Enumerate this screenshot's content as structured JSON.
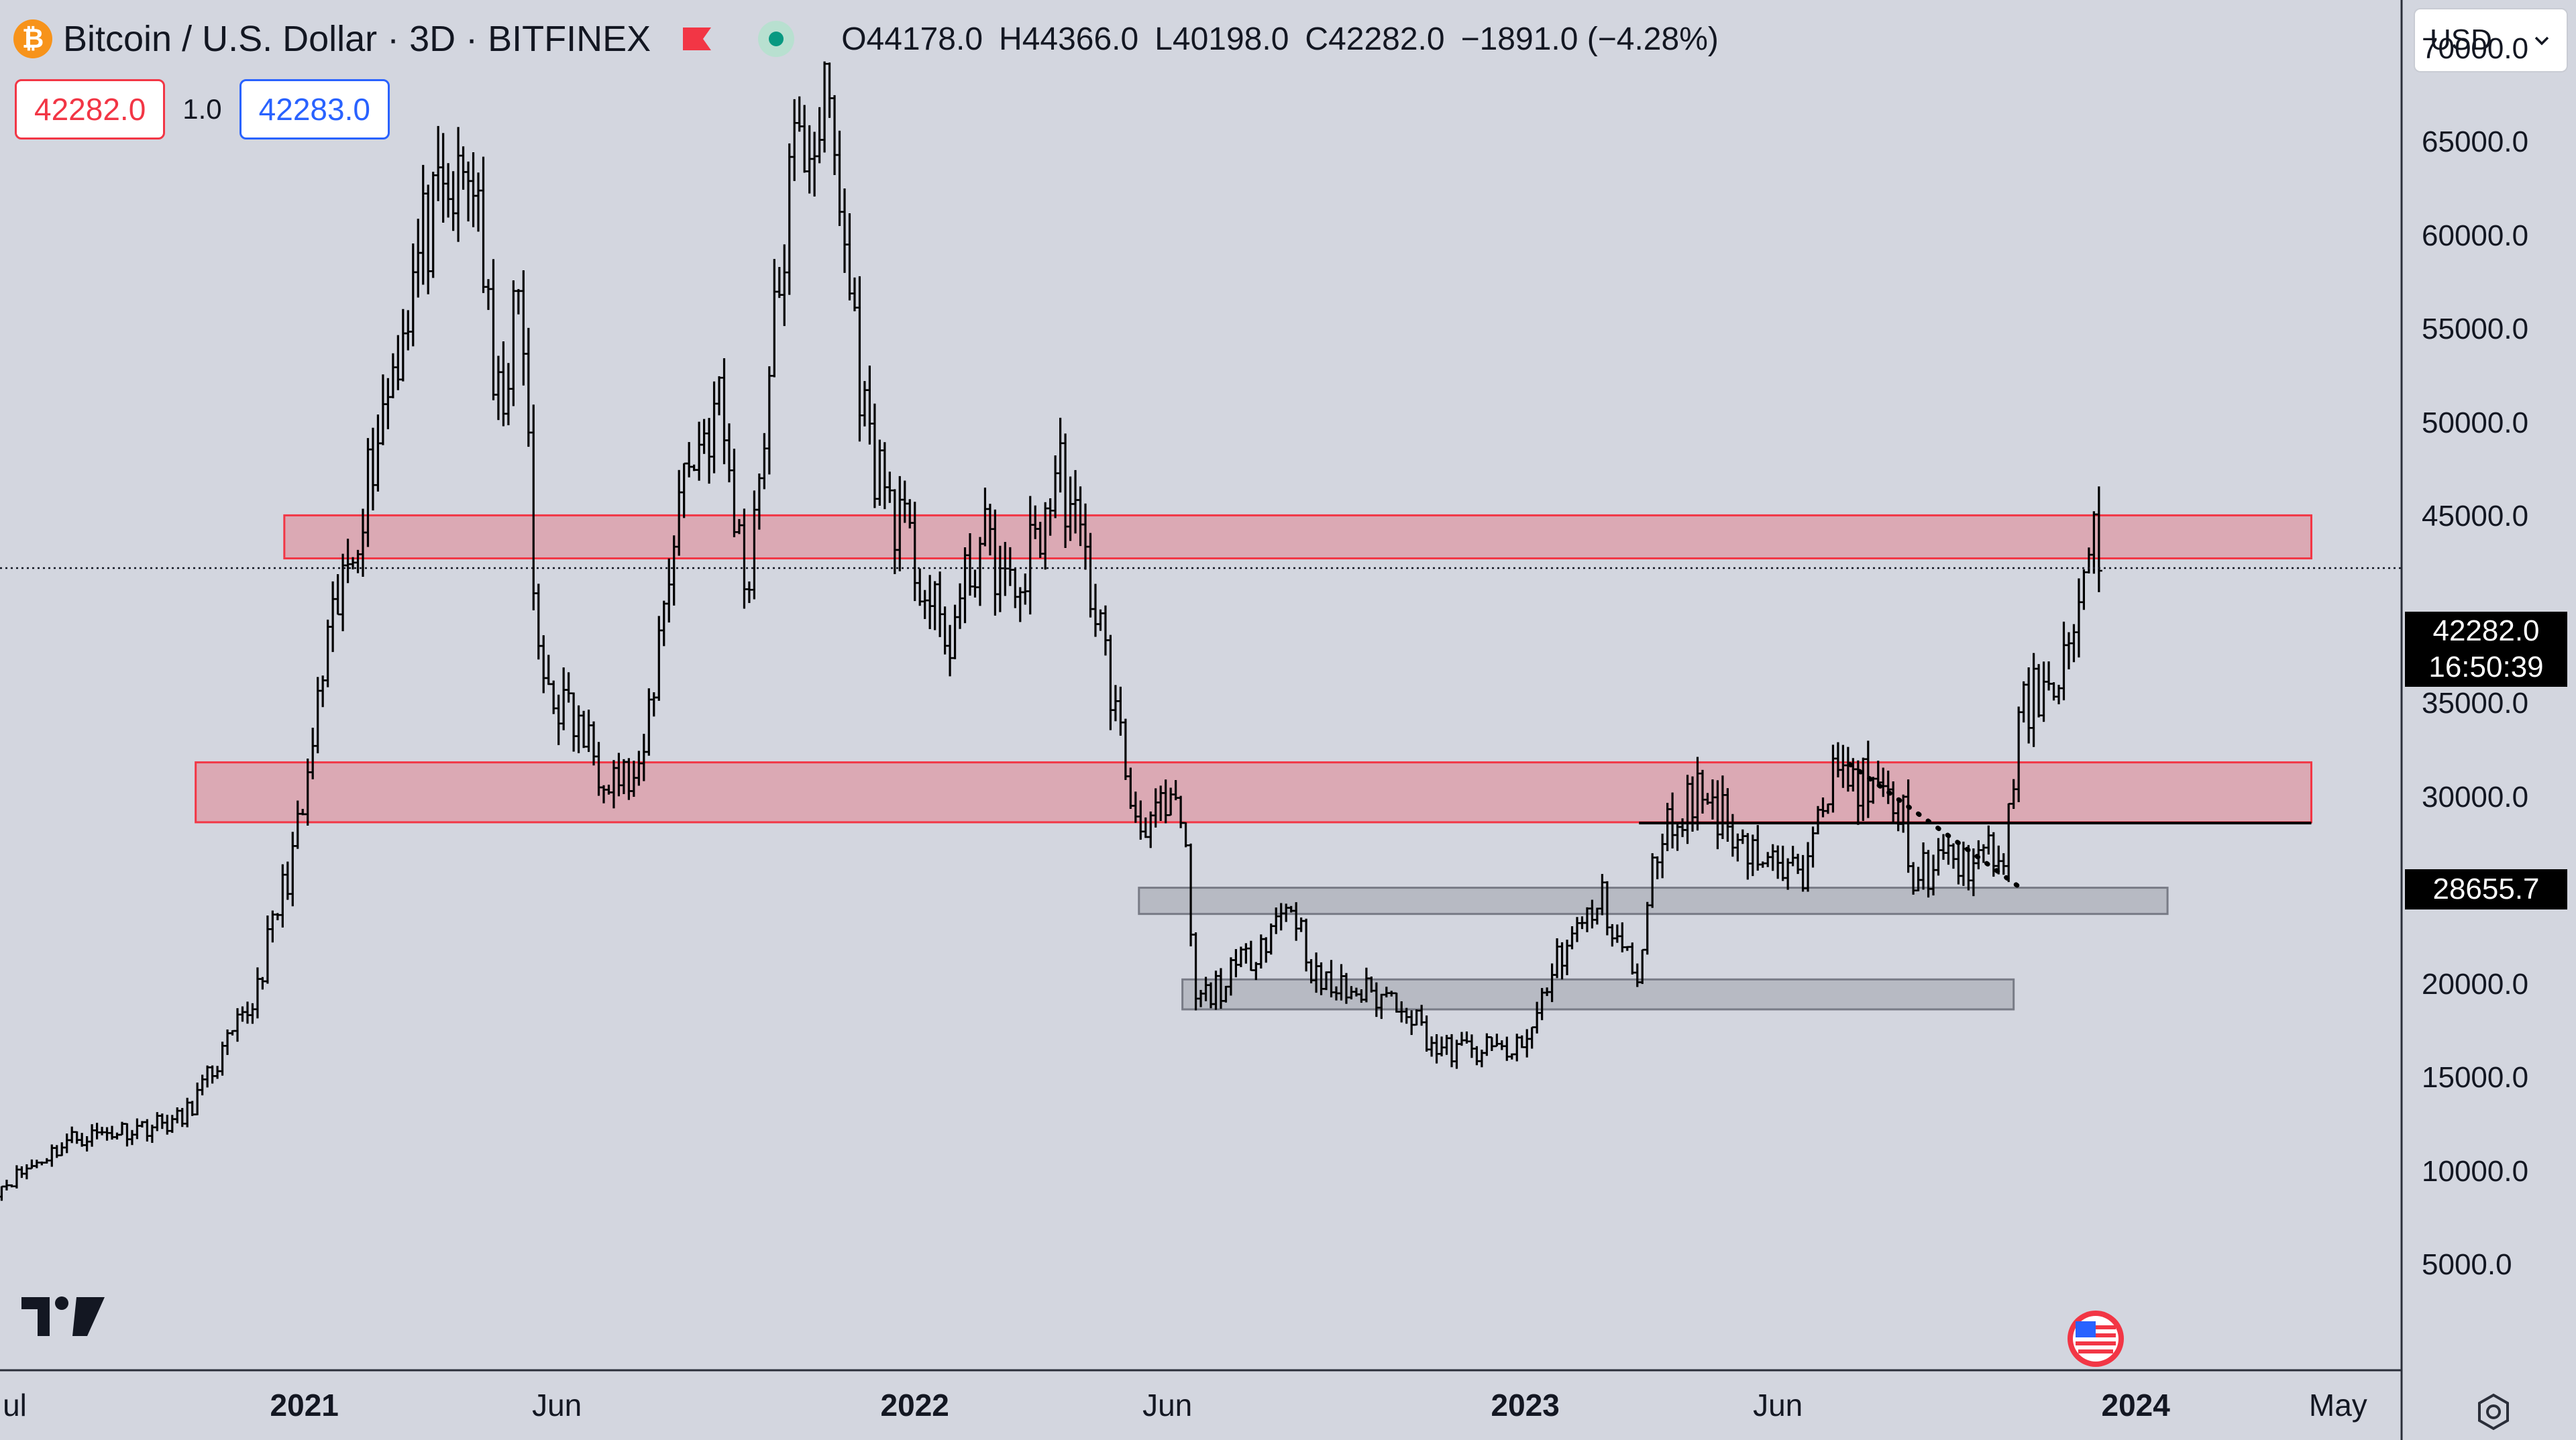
{
  "header": {
    "coin_glyph": "₿",
    "symbol_title": "Bitcoin / U.S. Dollar · 3D · BITFINEX",
    "ohlc": {
      "o": "O44178.0",
      "h": "H44366.0",
      "l": "L40198.0",
      "c": "C42282.0",
      "change": "−1891.0 (−4.28%)"
    },
    "icons": [
      "bitcoin-icon",
      "flag-icon",
      "market-status-icon"
    ]
  },
  "order_panel": {
    "sell_price": "42282.0",
    "spread": "1.0",
    "buy_price": "42283.0"
  },
  "currency_select": {
    "value": "USD"
  },
  "price_tags": {
    "last_price": "42282.0",
    "countdown": "16:50:39",
    "level_price": "28655.7"
  },
  "colors": {
    "background": "#d3d6df",
    "resistance_zone": "#f23645",
    "support_zone": "#9598a1",
    "candle": "#000000",
    "sell": "#f23645",
    "buy": "#2962ff"
  },
  "chart_data": {
    "type": "bar",
    "title": "Bitcoin / U.S. Dollar · 3D · BITFINEX",
    "y_axis": {
      "min": 2000,
      "max": 74000,
      "ticks": [
        70000,
        65000,
        60000,
        55000,
        50000,
        45000,
        35000,
        30000,
        25000,
        20000,
        15000,
        10000,
        5000
      ],
      "tick_labels": [
        "70000.0",
        "65000.0",
        "60000.0",
        "55000.0",
        "50000.0",
        "45000.0",
        "35000.0",
        "30000.0",
        "25000.0",
        "20000.0",
        "15000.0",
        "10000.0",
        "5000.0"
      ]
    },
    "x_axis": {
      "ticks": [
        {
          "date": "2020-07-01",
          "label": "ul",
          "major": false
        },
        {
          "date": "2021-01-01",
          "label": "2021",
          "major": true
        },
        {
          "date": "2021-06-01",
          "label": "Jun",
          "major": false
        },
        {
          "date": "2022-01-01",
          "label": "2022",
          "major": true
        },
        {
          "date": "2022-06-01",
          "label": "Jun",
          "major": false
        },
        {
          "date": "2023-01-01",
          "label": "2023",
          "major": true
        },
        {
          "date": "2023-06-01",
          "label": "Jun",
          "major": false
        },
        {
          "date": "2024-01-01",
          "label": "2024",
          "major": true
        },
        {
          "date": "2024-05-01",
          "label": "May",
          "major": false
        }
      ]
    },
    "grid": false,
    "last_price": 42282.0,
    "zones": [
      {
        "kind": "resistance",
        "from": "2020-12-20",
        "to": "2024-04-15",
        "low": 42800,
        "high": 45100
      },
      {
        "kind": "resistance",
        "from": "2020-10-28",
        "to": "2024-04-15",
        "low": 28700,
        "high": 31900
      },
      {
        "kind": "support",
        "from": "2022-05-15",
        "to": "2024-01-20",
        "low": 23800,
        "high": 25200
      },
      {
        "kind": "support",
        "from": "2022-06-10",
        "to": "2023-10-20",
        "low": 18700,
        "high": 20300
      }
    ],
    "horizontal_lines": [
      {
        "from": "2023-03-10",
        "to": "2024-04-15",
        "price": 28655.7
      }
    ],
    "trend_lines": [
      {
        "from_date": "2023-07-14",
        "from_price": 31800,
        "to_date": "2023-10-24",
        "to_price": 25200,
        "style": "dotted"
      }
    ],
    "waypoints": [
      [
        "2020-07-01",
        9100
      ],
      [
        "2020-08-15",
        11800
      ],
      [
        "2020-10-20",
        12800
      ],
      [
        "2020-11-30",
        18800
      ],
      [
        "2020-12-31",
        29000
      ],
      [
        "2021-01-12",
        36500
      ],
      [
        "2021-02-20",
        52000
      ],
      [
        "2021-03-13",
        60000
      ],
      [
        "2021-04-14",
        63500
      ],
      [
        "2021-04-25",
        50000
      ],
      [
        "2021-05-11",
        57000
      ],
      [
        "2021-05-20",
        37000
      ],
      [
        "2021-06-26",
        32000
      ],
      [
        "2021-07-20",
        30500
      ],
      [
        "2021-08-14",
        47000
      ],
      [
        "2021-09-06",
        51000
      ],
      [
        "2021-09-22",
        41000
      ],
      [
        "2021-10-20",
        64000
      ],
      [
        "2021-11-10",
        67000
      ],
      [
        "2021-12-04",
        49000
      ],
      [
        "2022-01-20",
        38000
      ],
      [
        "2022-02-10",
        44000
      ],
      [
        "2022-03-01",
        40500
      ],
      [
        "2022-03-29",
        47500
      ],
      [
        "2022-04-20",
        40000
      ],
      [
        "2022-05-12",
        29000
      ],
      [
        "2022-06-10",
        29000
      ],
      [
        "2022-06-18",
        19000
      ],
      [
        "2022-07-10",
        20500
      ],
      [
        "2022-08-14",
        24500
      ],
      [
        "2022-08-30",
        20000
      ],
      [
        "2022-10-20",
        19200
      ],
      [
        "2022-11-09",
        16500
      ],
      [
        "2022-12-31",
        16500
      ],
      [
        "2023-01-20",
        21500
      ],
      [
        "2023-02-16",
        24500
      ],
      [
        "2023-03-10",
        20000
      ],
      [
        "2023-03-20",
        27500
      ],
      [
        "2023-04-14",
        30500
      ],
      [
        "2023-05-25",
        26500
      ],
      [
        "2023-06-15",
        25500
      ],
      [
        "2023-06-24",
        30500
      ],
      [
        "2023-07-14",
        31300
      ],
      [
        "2023-08-15",
        29000
      ],
      [
        "2023-08-18",
        26000
      ],
      [
        "2023-10-15",
        27000
      ],
      [
        "2023-10-24",
        34500
      ],
      [
        "2023-11-20",
        37500
      ],
      [
        "2023-12-04",
        42000
      ],
      [
        "2023-12-08",
        43800
      ],
      [
        "2023-12-12",
        42282
      ]
    ],
    "series": [
      {
        "values": [],
        "style": "ohlc-bars"
      }
    ]
  }
}
